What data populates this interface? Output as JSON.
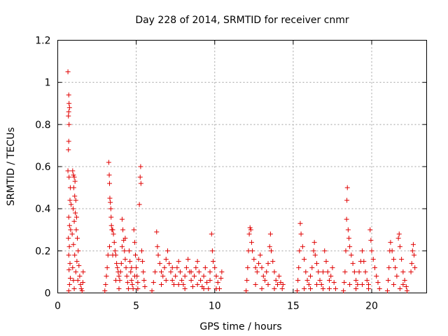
{
  "chart_data": {
    "type": "scatter",
    "title": "Day 228 of 2014, SRMTID for receiver cnmr",
    "xlabel": "GPS time / hours",
    "ylabel": "SRMTID / TECUs",
    "xlim": [
      0,
      23.5
    ],
    "ylim": [
      0,
      1.2
    ],
    "xticks": [
      0,
      5,
      10,
      15,
      20
    ],
    "xtick_labels": [
      "0",
      "5",
      "10",
      "15",
      "20"
    ],
    "yticks": [
      0,
      0.2,
      0.4,
      0.6,
      0.8,
      1.0,
      1.2
    ],
    "ytick_labels": [
      "0",
      "0.2",
      "0.4",
      "0.6",
      "0.8",
      "1",
      "1.2"
    ],
    "grid": true,
    "marker": "+",
    "color": "#e00000",
    "series": [
      {
        "values": [
          [
            0.65,
            1.05
          ],
          [
            0.7,
            0.94
          ],
          [
            0.72,
            0.9
          ],
          [
            0.75,
            0.88
          ],
          [
            0.7,
            0.86
          ],
          [
            0.68,
            0.84
          ],
          [
            0.72,
            0.8
          ],
          [
            0.7,
            0.72
          ],
          [
            0.68,
            0.68
          ],
          [
            0.65,
            0.58
          ],
          [
            0.72,
            0.55
          ],
          [
            0.8,
            0.5
          ],
          [
            0.78,
            0.44
          ],
          [
            0.85,
            0.42
          ],
          [
            0.7,
            0.36
          ],
          [
            0.75,
            0.32
          ],
          [
            0.82,
            0.3
          ],
          [
            0.68,
            0.26
          ],
          [
            0.74,
            0.22
          ],
          [
            0.7,
            0.18
          ],
          [
            0.78,
            0.14
          ],
          [
            0.72,
            0.11
          ],
          [
            0.8,
            0.07
          ],
          [
            0.75,
            0.04
          ],
          [
            0.7,
            0.01
          ],
          [
            0.95,
            0.58
          ],
          [
            1.0,
            0.56
          ],
          [
            1.05,
            0.55
          ],
          [
            1.1,
            0.53
          ],
          [
            1.02,
            0.5
          ],
          [
            1.08,
            0.46
          ],
          [
            1.15,
            0.44
          ],
          [
            0.98,
            0.4
          ],
          [
            1.12,
            0.38
          ],
          [
            1.2,
            0.36
          ],
          [
            1.05,
            0.34
          ],
          [
            1.18,
            0.3
          ],
          [
            0.92,
            0.28
          ],
          [
            1.25,
            0.26
          ],
          [
            1.0,
            0.23
          ],
          [
            1.3,
            0.2
          ],
          [
            1.08,
            0.18
          ],
          [
            1.22,
            0.15
          ],
          [
            1.35,
            0.13
          ],
          [
            1.15,
            0.1
          ],
          [
            1.4,
            0.08
          ],
          [
            1.28,
            0.06
          ],
          [
            1.45,
            0.04
          ],
          [
            1.5,
            0.02
          ],
          [
            1.55,
            0.01
          ],
          [
            1.6,
            0.05
          ],
          [
            1.62,
            0.1
          ],
          [
            0.95,
            0.12
          ],
          [
            1.0,
            0.06
          ],
          [
            1.05,
            0.02
          ],
          [
            3.0,
            0.01
          ],
          [
            3.05,
            0.04
          ],
          [
            3.1,
            0.08
          ],
          [
            3.15,
            0.12
          ],
          [
            3.2,
            0.18
          ],
          [
            3.25,
            0.62
          ],
          [
            3.28,
            0.56
          ],
          [
            3.3,
            0.52
          ],
          [
            3.32,
            0.45
          ],
          [
            3.35,
            0.43
          ],
          [
            3.38,
            0.4
          ],
          [
            3.4,
            0.36
          ],
          [
            3.42,
            0.32
          ],
          [
            3.45,
            0.3
          ],
          [
            3.5,
            0.3
          ],
          [
            3.55,
            0.28
          ],
          [
            3.6,
            0.24
          ],
          [
            3.65,
            0.2
          ],
          [
            3.7,
            0.18
          ],
          [
            3.75,
            0.14
          ],
          [
            3.8,
            0.12
          ],
          [
            3.85,
            0.1
          ],
          [
            3.9,
            0.08
          ],
          [
            3.95,
            0.06
          ],
          [
            4.0,
            0.1
          ],
          [
            4.05,
            0.14
          ],
          [
            4.1,
            0.35
          ],
          [
            4.15,
            0.3
          ],
          [
            4.2,
            0.25
          ],
          [
            4.25,
            0.2
          ],
          [
            4.3,
            0.16
          ],
          [
            4.35,
            0.12
          ],
          [
            4.4,
            0.08
          ],
          [
            4.45,
            0.05
          ],
          [
            4.5,
            0.02
          ],
          [
            4.55,
            0.2
          ],
          [
            4.6,
            0.15
          ],
          [
            4.65,
            0.1
          ],
          [
            4.7,
            0.06
          ],
          [
            4.75,
            0.04
          ],
          [
            4.8,
            0.02
          ],
          [
            4.85,
            0.3
          ],
          [
            4.9,
            0.24
          ],
          [
            4.95,
            0.18
          ],
          [
            5.0,
            0.12
          ],
          [
            5.05,
            0.08
          ],
          [
            5.1,
            0.05
          ],
          [
            5.15,
            0.16
          ],
          [
            5.2,
            0.42
          ],
          [
            5.25,
            0.55
          ],
          [
            5.28,
            0.6
          ],
          [
            5.3,
            0.52
          ],
          [
            5.35,
            0.2
          ],
          [
            5.4,
            0.15
          ],
          [
            5.45,
            0.1
          ],
          [
            5.5,
            0.06
          ],
          [
            5.55,
            0.03
          ],
          [
            3.3,
            0.22
          ],
          [
            3.5,
            0.18
          ],
          [
            3.7,
            0.06
          ],
          [
            3.9,
            0.02
          ],
          [
            4.1,
            0.22
          ],
          [
            4.3,
            0.26
          ],
          [
            4.7,
            0.12
          ],
          [
            4.9,
            0.08
          ],
          [
            5.1,
            0.02
          ],
          [
            6.0,
            0.01
          ],
          [
            6.1,
            0.05
          ],
          [
            6.2,
            0.1
          ],
          [
            6.3,
            0.29
          ],
          [
            6.35,
            0.22
          ],
          [
            6.4,
            0.18
          ],
          [
            6.5,
            0.14
          ],
          [
            6.6,
            0.1
          ],
          [
            6.7,
            0.08
          ],
          [
            6.8,
            0.12
          ],
          [
            6.9,
            0.16
          ],
          [
            7.0,
            0.2
          ],
          [
            7.1,
            0.14
          ],
          [
            7.2,
            0.1
          ],
          [
            7.3,
            0.06
          ],
          [
            7.4,
            0.04
          ],
          [
            7.5,
            0.08
          ],
          [
            7.6,
            0.12
          ],
          [
            7.7,
            0.15
          ],
          [
            7.8,
            0.1
          ],
          [
            7.9,
            0.06
          ],
          [
            8.0,
            0.04
          ],
          [
            8.1,
            0.08
          ],
          [
            8.2,
            0.12
          ],
          [
            8.3,
            0.16
          ],
          [
            8.4,
            0.1
          ],
          [
            8.5,
            0.06
          ],
          [
            8.6,
            0.03
          ],
          [
            8.7,
            0.08
          ],
          [
            8.8,
            0.12
          ],
          [
            8.9,
            0.15
          ],
          [
            9.0,
            0.1
          ],
          [
            9.1,
            0.06
          ],
          [
            9.2,
            0.03
          ],
          [
            9.3,
            0.08
          ],
          [
            9.4,
            0.12
          ],
          [
            9.5,
            0.05
          ],
          [
            9.6,
            0.02
          ],
          [
            9.7,
            0.1
          ],
          [
            9.8,
            0.28
          ],
          [
            9.85,
            0.2
          ],
          [
            9.9,
            0.15
          ],
          [
            10.0,
            0.12
          ],
          [
            10.1,
            0.08
          ],
          [
            10.2,
            0.05
          ],
          [
            10.3,
            0.02
          ],
          [
            10.4,
            0.07
          ],
          [
            10.45,
            0.1
          ],
          [
            6.6,
            0.04
          ],
          [
            6.9,
            0.06
          ],
          [
            7.3,
            0.12
          ],
          [
            7.7,
            0.04
          ],
          [
            8.1,
            0.02
          ],
          [
            8.5,
            0.1
          ],
          [
            8.9,
            0.04
          ],
          [
            9.3,
            0.02
          ],
          [
            9.7,
            0.06
          ],
          [
            10.1,
            0.02
          ],
          [
            12.0,
            0.01
          ],
          [
            12.05,
            0.06
          ],
          [
            12.1,
            0.12
          ],
          [
            12.15,
            0.2
          ],
          [
            12.2,
            0.28
          ],
          [
            12.25,
            0.31
          ],
          [
            12.3,
            0.3
          ],
          [
            12.35,
            0.24
          ],
          [
            12.4,
            0.2
          ],
          [
            12.5,
            0.16
          ],
          [
            12.6,
            0.12
          ],
          [
            12.7,
            0.1
          ],
          [
            12.8,
            0.14
          ],
          [
            12.9,
            0.18
          ],
          [
            13.0,
            0.12
          ],
          [
            13.1,
            0.08
          ],
          [
            13.2,
            0.06
          ],
          [
            13.3,
            0.1
          ],
          [
            13.4,
            0.14
          ],
          [
            13.5,
            0.22
          ],
          [
            13.55,
            0.28
          ],
          [
            13.6,
            0.2
          ],
          [
            13.7,
            0.15
          ],
          [
            13.8,
            0.1
          ],
          [
            13.9,
            0.06
          ],
          [
            14.0,
            0.04
          ],
          [
            14.1,
            0.08
          ],
          [
            14.2,
            0.05
          ],
          [
            14.3,
            0.02
          ],
          [
            14.35,
            0.04
          ],
          [
            12.6,
            0.04
          ],
          [
            13.0,
            0.02
          ],
          [
            13.4,
            0.04
          ],
          [
            13.8,
            0.02
          ],
          [
            15.25,
            0.01
          ],
          [
            15.3,
            0.06
          ],
          [
            15.35,
            0.12
          ],
          [
            15.4,
            0.2
          ],
          [
            15.45,
            0.33
          ],
          [
            15.5,
            0.28
          ],
          [
            15.6,
            0.22
          ],
          [
            15.7,
            0.16
          ],
          [
            15.8,
            0.1
          ],
          [
            15.9,
            0.06
          ],
          [
            16.0,
            0.04
          ],
          [
            16.1,
            0.08
          ],
          [
            16.2,
            0.12
          ],
          [
            16.3,
            0.2
          ],
          [
            16.35,
            0.24
          ],
          [
            16.4,
            0.18
          ],
          [
            16.5,
            0.14
          ],
          [
            16.6,
            0.1
          ],
          [
            16.7,
            0.06
          ],
          [
            16.8,
            0.04
          ],
          [
            16.9,
            0.1
          ],
          [
            17.0,
            0.2
          ],
          [
            17.1,
            0.15
          ],
          [
            17.2,
            0.1
          ],
          [
            17.3,
            0.06
          ],
          [
            17.4,
            0.08
          ],
          [
            17.5,
            0.12
          ],
          [
            17.6,
            0.05
          ],
          [
            17.7,
            0.02
          ],
          [
            15.7,
            0.02
          ],
          [
            16.1,
            0.02
          ],
          [
            16.5,
            0.04
          ],
          [
            16.9,
            0.02
          ],
          [
            17.3,
            0.02
          ],
          [
            18.2,
            0.01
          ],
          [
            18.25,
            0.05
          ],
          [
            18.3,
            0.1
          ],
          [
            18.35,
            0.2
          ],
          [
            18.4,
            0.35
          ],
          [
            18.42,
            0.44
          ],
          [
            18.45,
            0.5
          ],
          [
            18.5,
            0.3
          ],
          [
            18.55,
            0.26
          ],
          [
            18.6,
            0.22
          ],
          [
            18.7,
            0.18
          ],
          [
            18.8,
            0.14
          ],
          [
            18.9,
            0.1
          ],
          [
            19.0,
            0.06
          ],
          [
            19.1,
            0.04
          ],
          [
            19.2,
            0.1
          ],
          [
            19.3,
            0.15
          ],
          [
            19.4,
            0.2
          ],
          [
            19.5,
            0.15
          ],
          [
            19.6,
            0.1
          ],
          [
            19.7,
            0.06
          ],
          [
            19.8,
            0.04
          ],
          [
            19.9,
            0.3
          ],
          [
            19.95,
            0.25
          ],
          [
            20.0,
            0.2
          ],
          [
            20.1,
            0.16
          ],
          [
            20.2,
            0.12
          ],
          [
            20.3,
            0.08
          ],
          [
            20.4,
            0.05
          ],
          [
            20.5,
            0.02
          ],
          [
            18.6,
            0.04
          ],
          [
            19.0,
            0.02
          ],
          [
            19.4,
            0.04
          ],
          [
            19.8,
            0.02
          ],
          [
            21.0,
            0.01
          ],
          [
            21.05,
            0.06
          ],
          [
            21.1,
            0.12
          ],
          [
            21.15,
            0.2
          ],
          [
            21.2,
            0.24
          ],
          [
            21.3,
            0.2
          ],
          [
            21.4,
            0.16
          ],
          [
            21.5,
            0.12
          ],
          [
            21.6,
            0.08
          ],
          [
            21.7,
            0.26
          ],
          [
            21.75,
            0.28
          ],
          [
            21.8,
            0.22
          ],
          [
            21.9,
            0.16
          ],
          [
            22.0,
            0.1
          ],
          [
            22.1,
            0.06
          ],
          [
            22.2,
            0.03
          ],
          [
            22.25,
            0.01
          ],
          [
            22.5,
            0.1
          ],
          [
            22.55,
            0.14
          ],
          [
            22.6,
            0.2
          ],
          [
            22.65,
            0.23
          ],
          [
            22.7,
            0.18
          ],
          [
            22.75,
            0.12
          ],
          [
            21.4,
            0.04
          ],
          [
            21.8,
            0.02
          ],
          [
            22.0,
            0.04
          ]
        ]
      }
    ]
  }
}
